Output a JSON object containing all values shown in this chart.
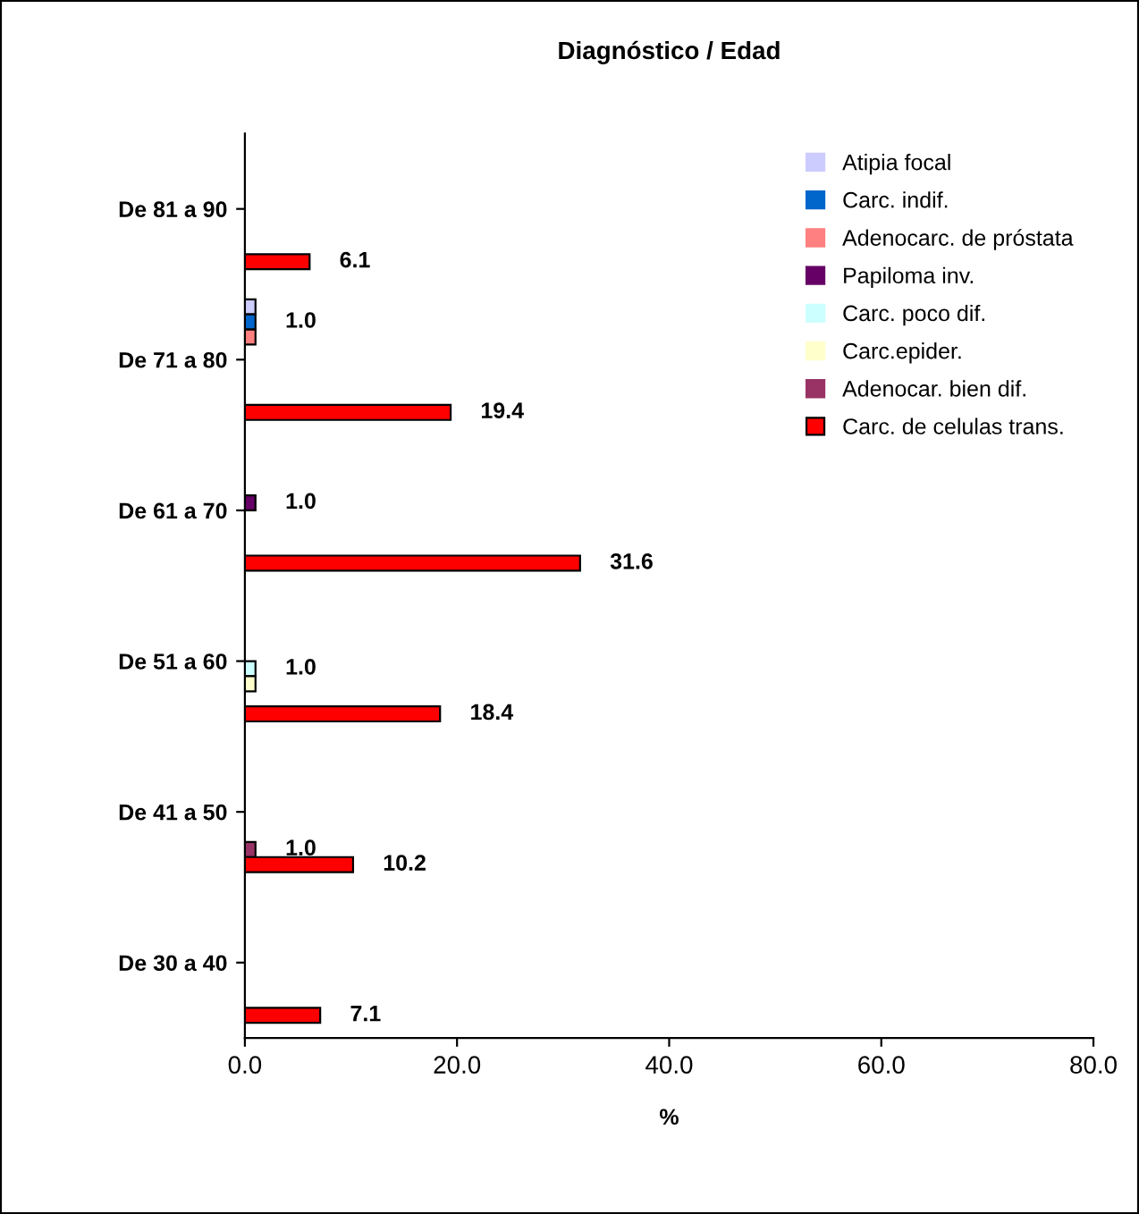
{
  "chart_data": {
    "type": "bar",
    "orientation": "horizontal",
    "title": "Diagnóstico / Edad",
    "xlabel": "%",
    "categories": [
      "De 81 a 90",
      "De 71 a 80",
      "De 61 a 70",
      "De 51 a 60",
      "De 41 a 50",
      "De 30 a 40"
    ],
    "series": [
      {
        "name": "Atipia focal",
        "color": "#ccccff",
        "values": [
          0,
          1.0,
          0,
          0,
          0,
          0
        ],
        "value_labels": [
          null,
          null,
          null,
          null,
          null,
          null
        ]
      },
      {
        "name": "Carc. indif.",
        "color": "#0066cc",
        "values": [
          0,
          1.0,
          0,
          0,
          0,
          0
        ],
        "value_labels": [
          null,
          "1.0",
          null,
          null,
          null,
          null
        ]
      },
      {
        "name": "Adenocarc. de próstata",
        "color": "#ff8080",
        "values": [
          0,
          1.0,
          0,
          0,
          0,
          0
        ],
        "value_labels": [
          null,
          null,
          null,
          null,
          null,
          null
        ]
      },
      {
        "name": "Papiloma inv.",
        "color": "#660066",
        "values": [
          0,
          0,
          1.0,
          0,
          0,
          0
        ],
        "value_labels": [
          null,
          null,
          "1.0",
          null,
          null,
          null
        ]
      },
      {
        "name": "Carc. poco dif.",
        "color": "#ccffff",
        "values": [
          0,
          0,
          0,
          1.0,
          0,
          0
        ],
        "value_labels": [
          null,
          null,
          null,
          "1.0",
          null,
          null
        ]
      },
      {
        "name": "Carc.epider.",
        "color": "#ffffcc",
        "values": [
          0,
          0,
          0,
          1.0,
          0,
          0
        ],
        "value_labels": [
          null,
          null,
          null,
          null,
          null,
          null
        ]
      },
      {
        "name": "Adenocar. bien dif.",
        "color": "#993366",
        "values": [
          0,
          0,
          0,
          0,
          1.0,
          0
        ],
        "value_labels": [
          null,
          null,
          null,
          null,
          "1.0",
          null
        ]
      },
      {
        "name": "Carc. de celulas trans.",
        "color": "#ff0000",
        "values": [
          6.1,
          19.4,
          31.6,
          18.4,
          10.2,
          7.1
        ],
        "value_labels": [
          "6.1",
          "19.4",
          "31.6",
          "18.4",
          "10.2",
          "7.1"
        ]
      }
    ],
    "xlim": [
      0,
      80
    ],
    "xticks": [
      {
        "value": 0,
        "label": "0.0"
      },
      {
        "value": 20,
        "label": "20.0"
      },
      {
        "value": 40,
        "label": "40.0"
      },
      {
        "value": 60,
        "label": "60.0"
      },
      {
        "value": 80,
        "label": "80.0"
      }
    ],
    "grid": false,
    "legend": "top right"
  }
}
